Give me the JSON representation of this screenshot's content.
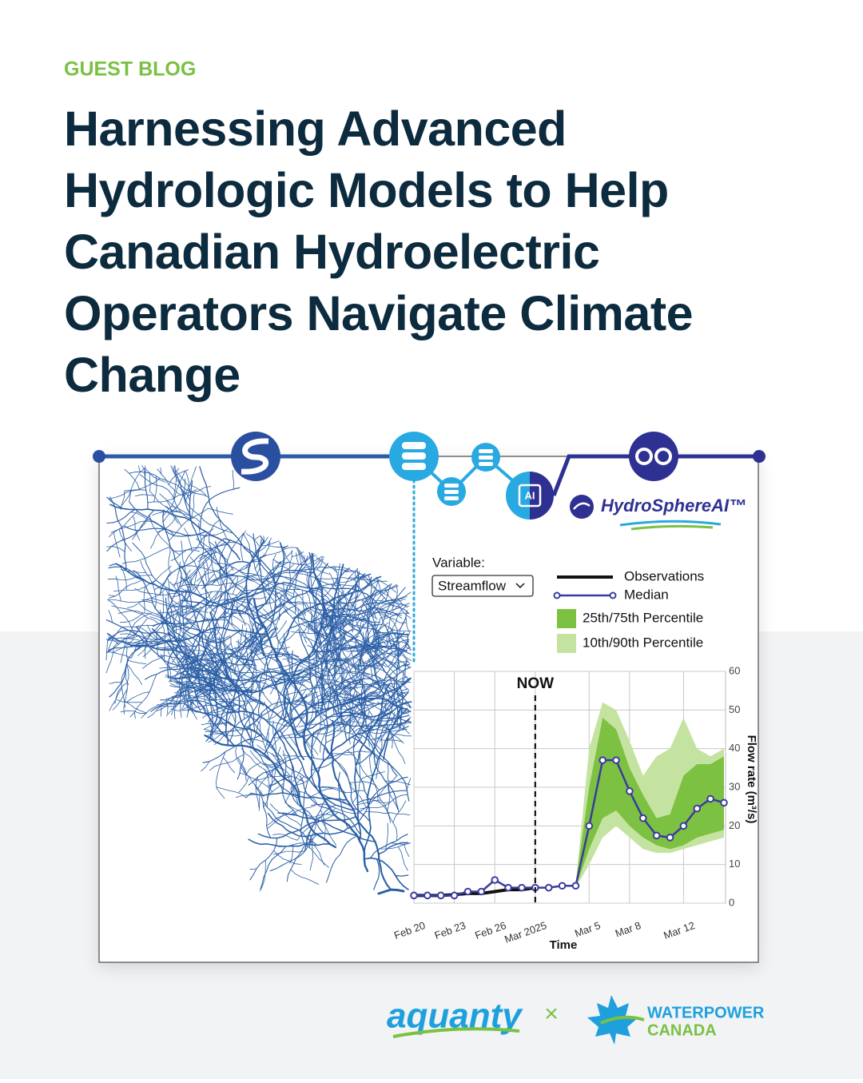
{
  "header": {
    "label": "GUEST BLOG",
    "title_lines": [
      "Harnessing Advanced",
      "Hydrologic Models to Help",
      "Canadian Hydroelectric",
      "Operators Navigate Climate",
      "Change"
    ]
  },
  "logos": {
    "hydrosphere": "HydroSphereAI™",
    "aquanty": "aquanty",
    "times": "×",
    "waterpower": [
      "WATERPOWER",
      "CANADA"
    ]
  },
  "chart_data": {
    "type": "line",
    "variable_label": "Variable:",
    "dropdown": "Streamflow",
    "x_label": "Time",
    "y_label": "Flow rate (m³/s)",
    "annotations": [
      {
        "text": "NOW",
        "x": "2025-03-01"
      }
    ],
    "x": [
      "2025-02-20",
      "2025-02-21",
      "2025-02-22",
      "2025-02-23",
      "2025-02-24",
      "2025-02-25",
      "2025-02-26",
      "2025-02-27",
      "2025-02-28",
      "2025-03-01",
      "2025-03-02",
      "2025-03-03",
      "2025-03-04",
      "2025-03-05",
      "2025-03-06",
      "2025-03-07",
      "2025-03-08",
      "2025-03-09",
      "2025-03-10",
      "2025-03-11",
      "2025-03-12",
      "2025-03-13",
      "2025-03-14",
      "2025-03-15"
    ],
    "series": [
      {
        "name": "Observations",
        "color": "#111111",
        "values": [
          2,
          2,
          2,
          2.2,
          2.5,
          2.5,
          3,
          3.5,
          3.5,
          4,
          null,
          null,
          null,
          null,
          null,
          null,
          null,
          null,
          null,
          null,
          null,
          null,
          null,
          null
        ]
      },
      {
        "name": "Median",
        "color": "#3b3b9e",
        "values": [
          2,
          2,
          2,
          2,
          3,
          3,
          6,
          4,
          4,
          4,
          4,
          4.5,
          4.5,
          20,
          37,
          37,
          29,
          22,
          17.5,
          17,
          20,
          24.5,
          27,
          26
        ]
      }
    ],
    "bands": [
      {
        "name": "10th/90th Percentile",
        "color": "#c5e3a0",
        "low": [
          null,
          null,
          null,
          null,
          null,
          null,
          null,
          null,
          null,
          null,
          null,
          null,
          4,
          10,
          17,
          20,
          17,
          14,
          13,
          13,
          14,
          15,
          16,
          17
        ],
        "high": [
          null,
          null,
          null,
          null,
          null,
          null,
          null,
          null,
          null,
          null,
          null,
          null,
          5,
          40,
          52,
          50,
          42,
          33,
          38,
          40,
          48,
          40,
          38,
          40
        ]
      },
      {
        "name": "25th/75th Percentile",
        "color": "#7dc142",
        "low": [
          null,
          null,
          null,
          null,
          null,
          null,
          null,
          null,
          null,
          null,
          null,
          null,
          4,
          14,
          22,
          24,
          20,
          17,
          15,
          14,
          15,
          17,
          18,
          19
        ],
        "high": [
          null,
          null,
          null,
          null,
          null,
          null,
          null,
          null,
          null,
          null,
          null,
          null,
          5,
          30,
          48,
          45,
          35,
          28,
          22,
          23,
          33,
          36,
          36,
          38
        ]
      }
    ],
    "xlim": [
      "2025-02-20",
      "2025-03-15"
    ],
    "xticks": [
      {
        "value": "2025-02-20",
        "label": "Feb 20"
      },
      {
        "value": "2025-02-23",
        "label": "Feb 23"
      },
      {
        "value": "2025-02-26",
        "label": "Feb 26"
      },
      {
        "value": "2025-03-01",
        "label": "Mar 2025"
      },
      {
        "value": "2025-03-05",
        "label": "Mar 5"
      },
      {
        "value": "2025-03-08",
        "label": "Mar 8"
      },
      {
        "value": "2025-03-12",
        "label": "Mar 12"
      }
    ],
    "ylim": [
      0,
      60
    ],
    "yticks": [
      0,
      10,
      20,
      30,
      40,
      50,
      60
    ],
    "grid": true
  }
}
